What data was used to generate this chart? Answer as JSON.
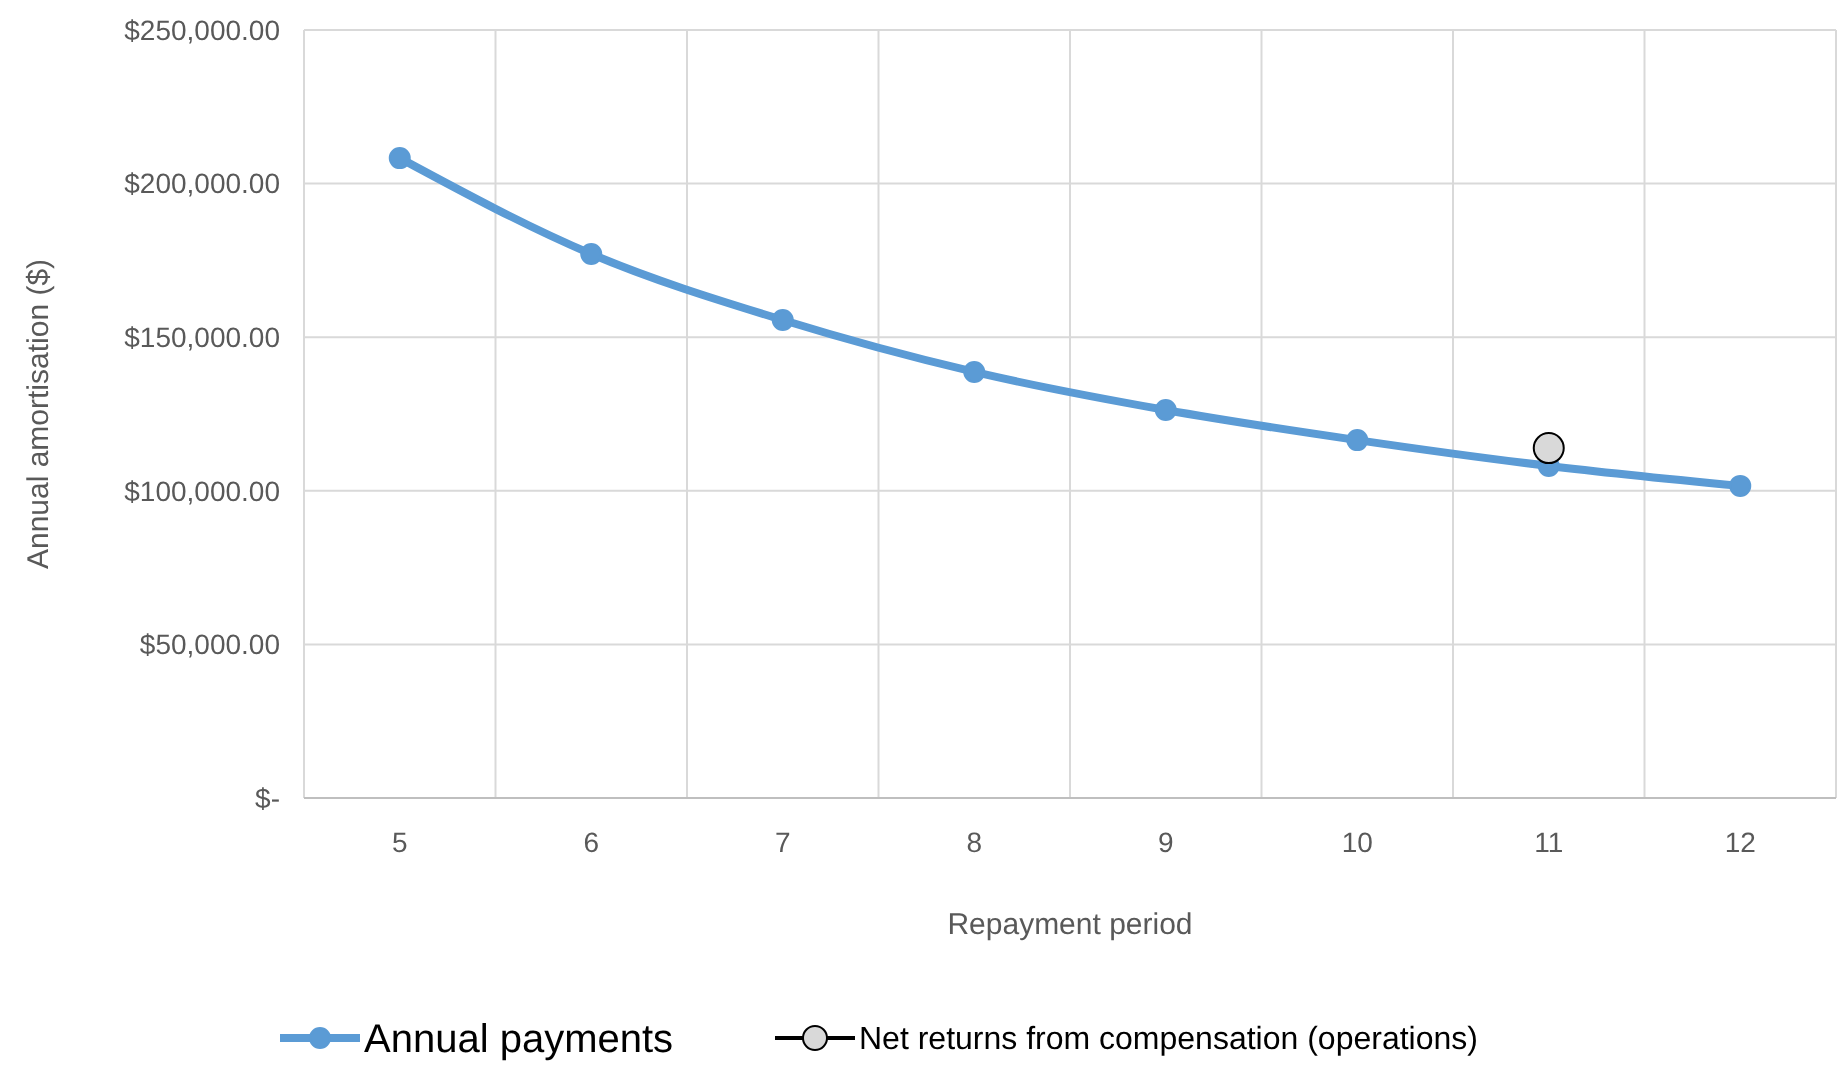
{
  "chart_data": {
    "type": "line",
    "xlabel": "Repayment period",
    "ylabel": "Annual amortisation ($)",
    "categories": [
      "5",
      "6",
      "7",
      "8",
      "9",
      "10",
      "11",
      "12"
    ],
    "series": [
      {
        "name": "Annual payments",
        "color": "#5b9bd5",
        "values": [
          208300,
          177100,
          155600,
          138700,
          126300,
          116500,
          108100,
          101600
        ]
      },
      {
        "name": "Net returns from compensation (operations)",
        "color": "#d9d9d9",
        "values": [
          null,
          null,
          null,
          null,
          null,
          null,
          113900,
          null
        ]
      }
    ],
    "ylim": [
      0,
      250000
    ],
    "yticks": [
      {
        "value": 0,
        "label": "$-"
      },
      {
        "value": 50000,
        "label": "$50,000.00"
      },
      {
        "value": 100000,
        "label": "$100,000.00"
      },
      {
        "value": 150000,
        "label": "$150,000.00"
      },
      {
        "value": 200000,
        "label": "$200,000.00"
      },
      {
        "value": 250000,
        "label": "$250,000.00"
      }
    ],
    "grid": true,
    "legend": "bottom",
    "marker": "circle",
    "line_style": "solid"
  }
}
